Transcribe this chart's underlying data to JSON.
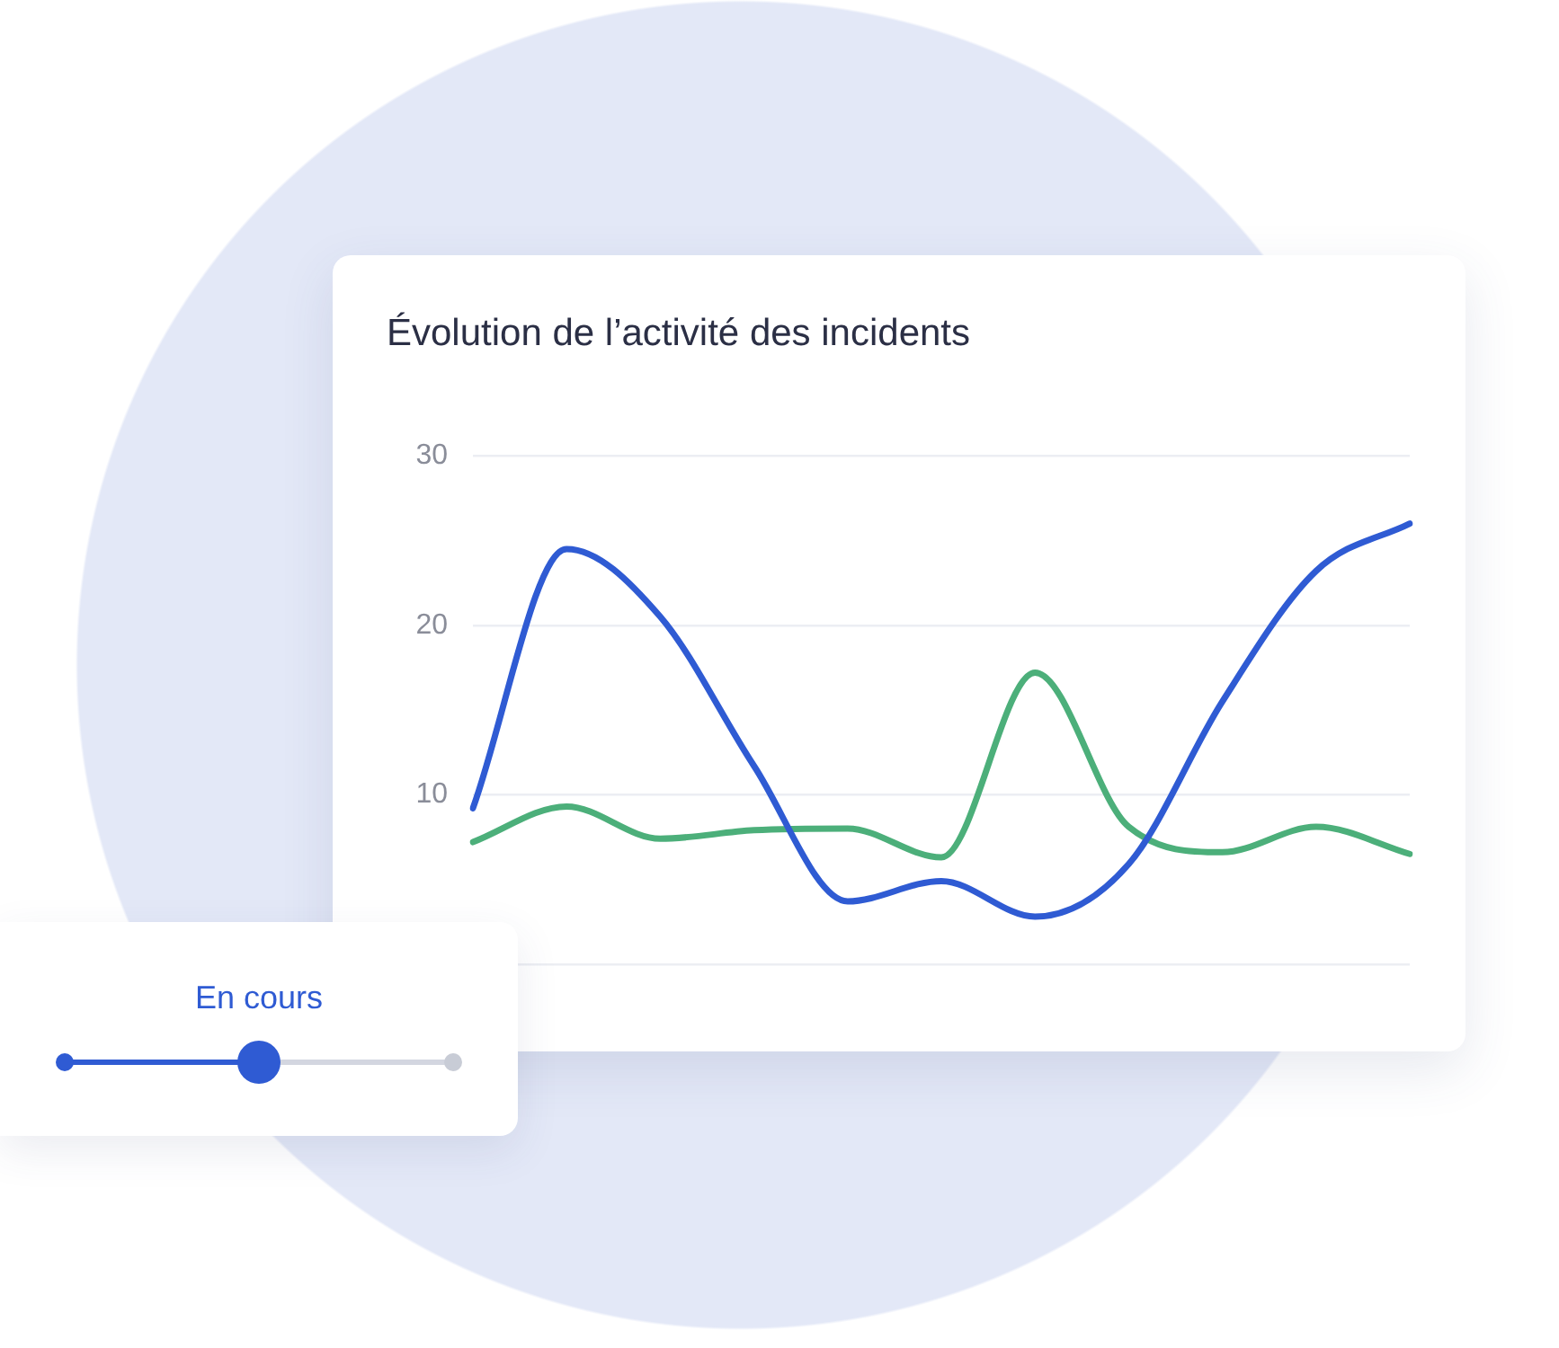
{
  "chart_data": {
    "type": "line",
    "title": "Évolution de l’activité des incidents",
    "categories": [
      null,
      null,
      null,
      null,
      null,
      null,
      null,
      null,
      null,
      null,
      null
    ],
    "series": [
      {
        "color": "#2f5bd3",
        "values": [
          9.2,
          24.5,
          20.5,
          11.7,
          3.7,
          4.9,
          2.8,
          5.9,
          15.5,
          23.2,
          26
        ]
      },
      {
        "color": "#4caf7a",
        "values": [
          7.2,
          9.3,
          7.4,
          7.9,
          8.0,
          6.3,
          17.2,
          8.1,
          6.6,
          8.1,
          6.5
        ]
      }
    ],
    "ylim": [
      0,
      30
    ],
    "yticks": [
      {
        "value": 0,
        "label": null
      },
      10,
      20,
      30
    ],
    "grid": "y",
    "tick_labels": "y",
    "marker": "none",
    "annotations": [
      "En cours"
    ]
  }
}
